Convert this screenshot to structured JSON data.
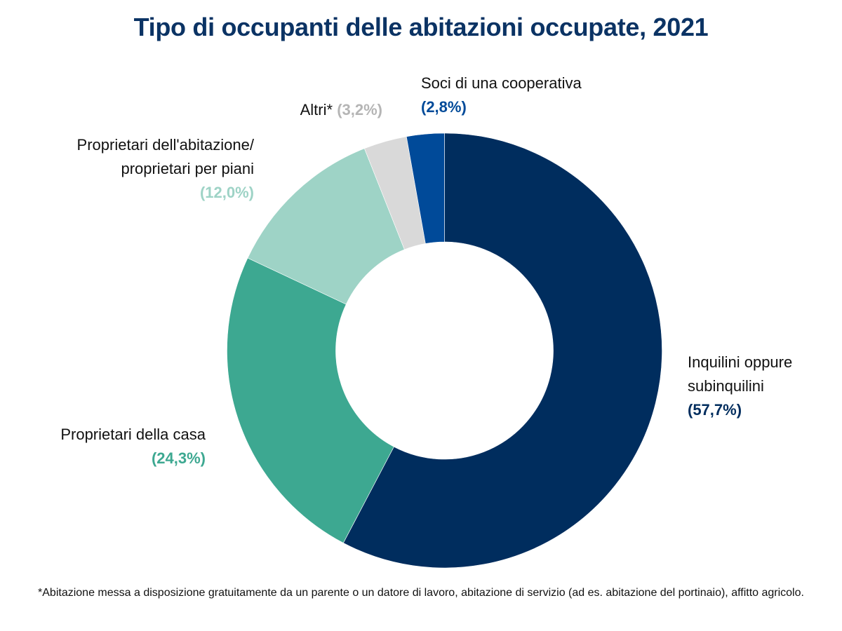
{
  "chart_data": {
    "type": "pie",
    "variant": "donut",
    "title": "Tipo di occupanti delle abitazioni occupate, 2021",
    "slices": [
      {
        "label": "Inquilini oppure subinquilini",
        "value": 57.7,
        "value_label": "(57,7%)",
        "color": "#002D5E",
        "label_color": "#002D5E"
      },
      {
        "label": "Proprietari della casa",
        "value": 24.3,
        "value_label": "(24,3%)",
        "color": "#3DA891",
        "label_color": "#3DA891"
      },
      {
        "label": "Proprietari dell'abitazione/ proprietari per piani",
        "value": 12.0,
        "value_label": "(12,0%)",
        "color": "#9ED3C6",
        "label_color": "#9ED3C6"
      },
      {
        "label": "Altri*",
        "value": 3.2,
        "value_label": "(3,2%)",
        "color": "#D9D9D9",
        "label_color": "#B5B5B5"
      },
      {
        "label": "Soci di una cooperativa",
        "value": 2.8,
        "value_label": "(2,8%)",
        "color": "#004A99",
        "label_color": "#004A99"
      }
    ],
    "start": "top",
    "direction": "clockwise",
    "footnote": "*Abitazione messa a disposizione gratuitamente da un parente o un datore di lavoro, abitazione di servizio (ad es. abitazione del portinaio), affitto agricolo."
  }
}
